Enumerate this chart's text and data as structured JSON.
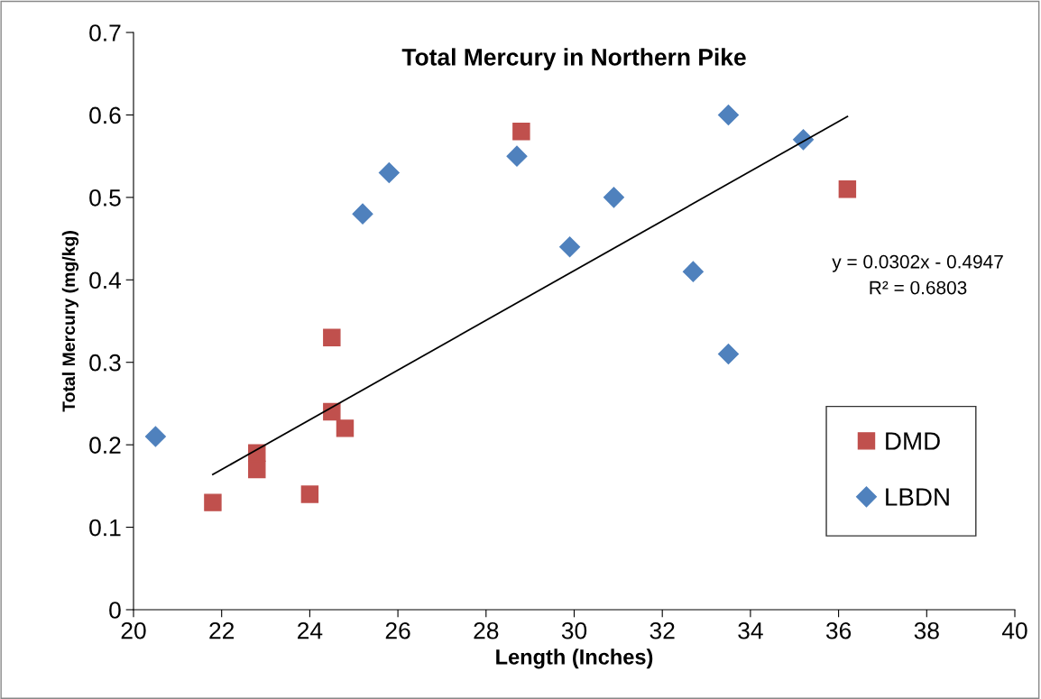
{
  "chart_data": {
    "type": "scatter",
    "title": "Total Mercury in Northern Pike",
    "xlabel": "Length (Inches)",
    "ylabel": "Total Mercury (mg/kg)",
    "xlim": [
      20,
      40
    ],
    "xticks": [
      20,
      22,
      24,
      26,
      28,
      30,
      32,
      34,
      36,
      38,
      40
    ],
    "ylim": [
      0,
      0.7
    ],
    "yticks": [
      0,
      0.1,
      0.2,
      0.3,
      0.4,
      0.5,
      0.6,
      0.7
    ],
    "grid": false,
    "legend": "right",
    "series": [
      {
        "name": "DMD",
        "color": "#c0504d",
        "marker": "square",
        "x": [
          21.8,
          22.8,
          22.8,
          24.0,
          24.5,
          24.5,
          24.8,
          28.8,
          36.2
        ],
        "values": [
          0.13,
          0.19,
          0.17,
          0.14,
          0.33,
          0.24,
          0.22,
          0.58,
          0.51
        ]
      },
      {
        "name": "LBDN",
        "color": "#4f81bd",
        "marker": "diamond",
        "x": [
          20.5,
          25.2,
          25.8,
          28.7,
          29.9,
          30.9,
          32.7,
          33.5,
          33.5,
          35.2
        ],
        "values": [
          0.21,
          0.48,
          0.53,
          0.55,
          0.44,
          0.5,
          0.41,
          0.6,
          0.31,
          0.57
        ]
      },
      {
        "type": "line",
        "color": "#000000",
        "marker": "none",
        "line_style": "solid",
        "x": [
          21.8,
          36.2
        ],
        "values": [
          0.164,
          0.598
        ]
      }
    ],
    "annotations": [
      "y = 0.0302x - 0.4947",
      "R² = 0.6803"
    ]
  }
}
